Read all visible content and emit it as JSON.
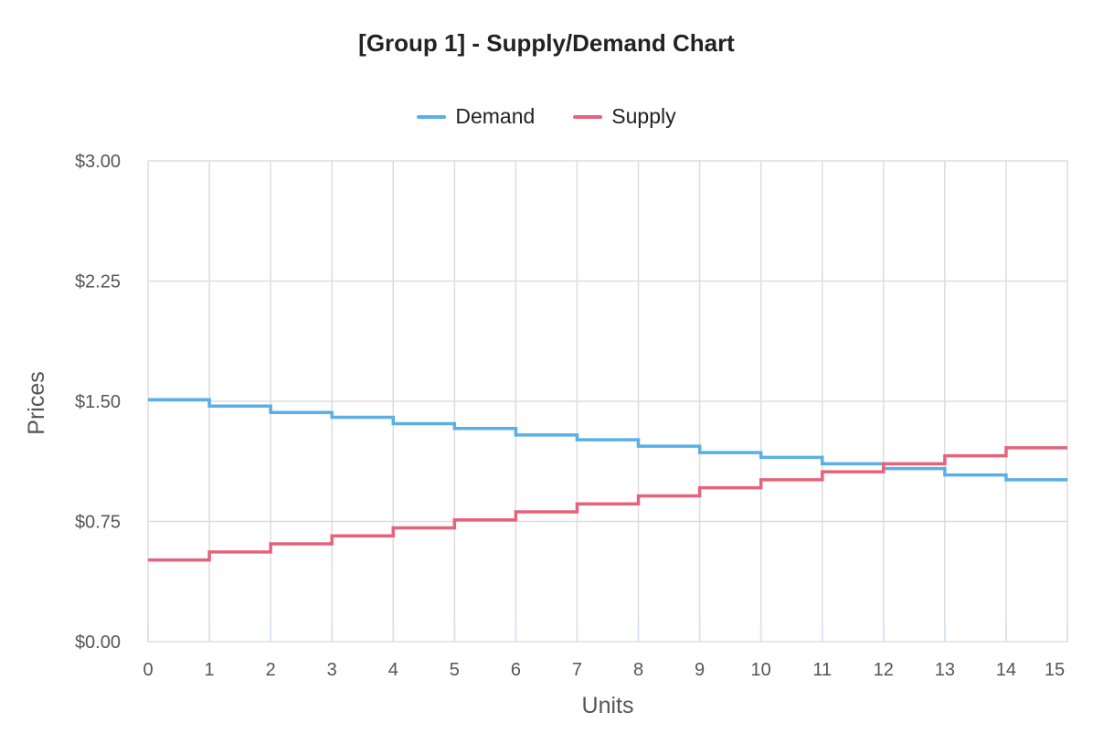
{
  "chart_data": {
    "type": "line",
    "step": "after",
    "title": "[Group 1] - Supply/Demand Chart",
    "xlabel": "Units",
    "ylabel": "Prices",
    "x": [
      0,
      1,
      2,
      3,
      4,
      5,
      6,
      7,
      8,
      9,
      10,
      11,
      12,
      13,
      14,
      15
    ],
    "xlim": [
      0,
      15
    ],
    "ylim": [
      0,
      3
    ],
    "x_ticks": [
      "0",
      "1",
      "2",
      "3",
      "4",
      "5",
      "6",
      "7",
      "8",
      "9",
      "10",
      "11",
      "12",
      "13",
      "14",
      "15"
    ],
    "y_ticks": [
      {
        "value": 0,
        "label": "$0.00"
      },
      {
        "value": 0.75,
        "label": "$0.75"
      },
      {
        "value": 1.5,
        "label": "$1.50"
      },
      {
        "value": 2.25,
        "label": "$2.25"
      },
      {
        "value": 3,
        "label": "$3.00"
      }
    ],
    "grid": true,
    "legend_position": "top-center",
    "series": [
      {
        "name": "Demand",
        "color": "#5aafe6",
        "values": [
          1.51,
          1.47,
          1.43,
          1.4,
          1.36,
          1.33,
          1.29,
          1.26,
          1.22,
          1.18,
          1.15,
          1.11,
          1.08,
          1.04,
          1.01,
          1.01
        ]
      },
      {
        "name": "Supply",
        "color": "#e3647c",
        "values": [
          0.51,
          0.56,
          0.61,
          0.66,
          0.71,
          0.76,
          0.81,
          0.86,
          0.91,
          0.96,
          1.01,
          1.06,
          1.11,
          1.16,
          1.21,
          1.21
        ]
      }
    ]
  }
}
